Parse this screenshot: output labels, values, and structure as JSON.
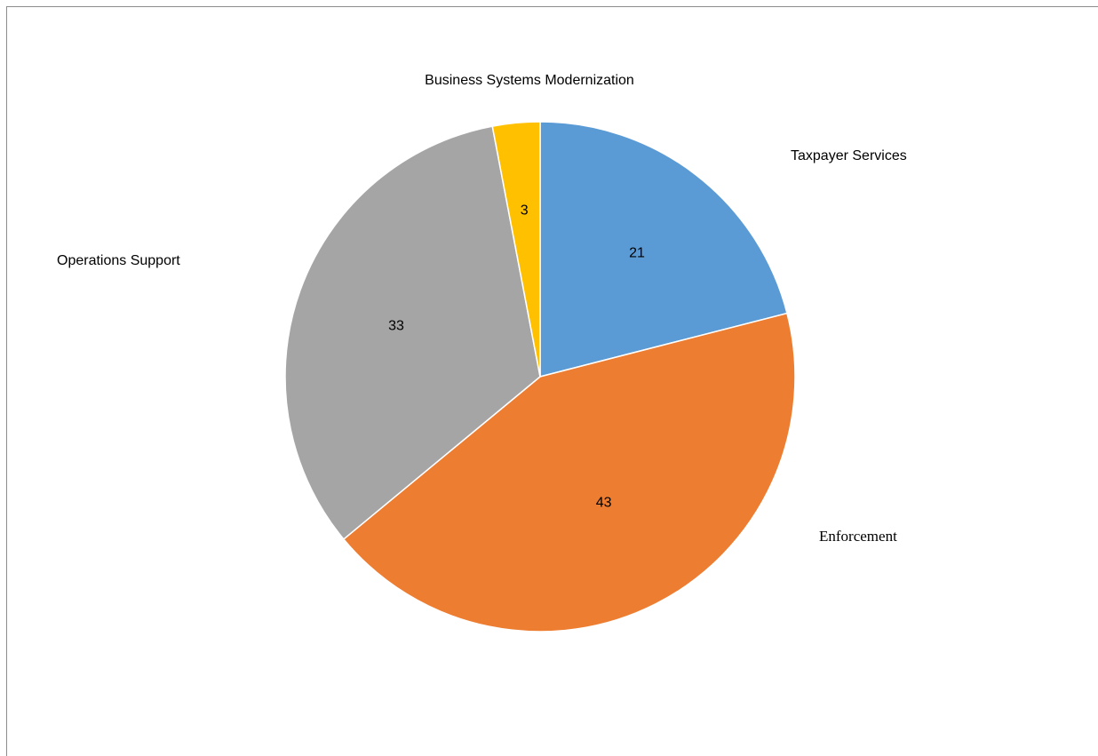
{
  "chart_data": {
    "type": "pie",
    "title": "",
    "categories": [
      "Taxpayer Services",
      "Enforcement",
      "Operations Support",
      "Business Systems Modernization"
    ],
    "values": [
      21,
      43,
      33,
      3
    ],
    "data_labels": [
      "21",
      "43",
      "33",
      "3"
    ],
    "colors": [
      "#5b9bd5",
      "#ed7d31",
      "#a5a5a5",
      "#ffc000"
    ],
    "start_angle_deg": 0,
    "direction": "clockwise",
    "legend": "none",
    "category_labels_outside": true
  }
}
